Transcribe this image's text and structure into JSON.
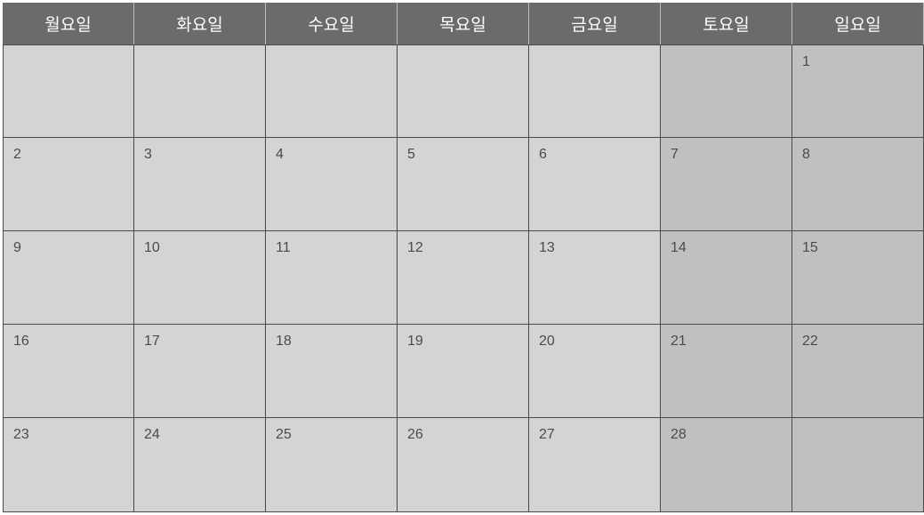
{
  "weekdays": [
    "월요일",
    "화요일",
    "수요일",
    "목요일",
    "금요일",
    "토요일",
    "일요일"
  ],
  "weekend_columns": [
    5,
    6
  ],
  "weeks": [
    [
      "",
      "",
      "",
      "",
      "",
      "",
      "1"
    ],
    [
      "2",
      "3",
      "4",
      "5",
      "6",
      "7",
      "8"
    ],
    [
      "9",
      "10",
      "11",
      "12",
      "13",
      "14",
      "15"
    ],
    [
      "16",
      "17",
      "18",
      "19",
      "20",
      "21",
      "22"
    ],
    [
      "23",
      "24",
      "25",
      "26",
      "27",
      "28",
      ""
    ]
  ],
  "colors": {
    "header_bg": "#6b6b6b",
    "header_text": "#ffffff",
    "weekday_cell": "#d4d4d4",
    "weekend_cell": "#c0c0c0",
    "grid_line": "#4a4a4a",
    "date_text": "#4b4b4b"
  }
}
